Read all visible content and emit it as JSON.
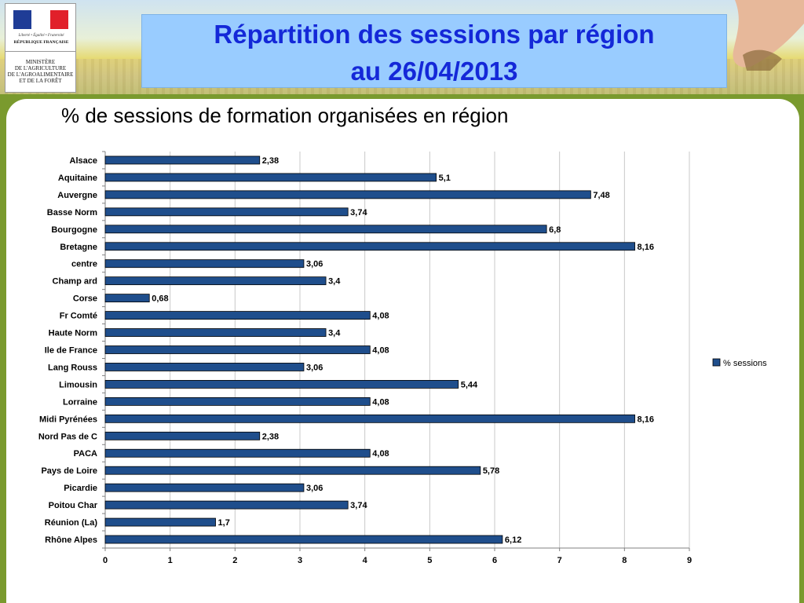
{
  "slide": {
    "title_line1": "Répartition des sessions par région",
    "title_line2": "au 26/04/2013",
    "subtitle": "% de sessions de formation organisées en région"
  },
  "logo": {
    "motto": "Liberté • Égalité • Fraternité",
    "republic": "RÉPUBLIQUE FRANÇAISE",
    "ministry": "MINISTÈRE\nDE L'AGRICULTURE\nDE L'AGROALIMENTAIRE\nET DE LA FORÊT"
  },
  "colors": {
    "bar": "#1f4e8c",
    "title_text": "#1428d8",
    "title_box": "#99ccff",
    "frame": "#7a9a2e"
  },
  "chart_data": {
    "type": "bar",
    "orientation": "horizontal",
    "categories": [
      "Alsace",
      "Aquitaine",
      "Auvergne",
      "Basse Norm",
      "Bourgogne",
      "Bretagne",
      "centre",
      "Champ ard",
      "Corse",
      "Fr Comté",
      "Haute Norm",
      "Ile de France",
      "Lang Rouss",
      "Limousin",
      "Lorraine",
      "Midi Pyrénées",
      "Nord Pas de C",
      "PACA",
      "Pays de Loire",
      "Picardie",
      "Poitou Char",
      "Réunion (La)",
      "Rhône Alpes"
    ],
    "series": [
      {
        "name": "% sessions",
        "values": [
          2.38,
          5.1,
          7.48,
          3.74,
          6.8,
          8.16,
          3.06,
          3.4,
          0.68,
          4.08,
          3.4,
          4.08,
          3.06,
          5.44,
          4.08,
          8.16,
          2.38,
          4.08,
          5.78,
          3.06,
          3.74,
          1.7,
          6.12
        ],
        "labels": [
          "2,38",
          "5,1",
          "7,48",
          "3,74",
          "6,8",
          "8,16",
          "3,06",
          "3,4",
          "0,68",
          "4,08",
          "3,4",
          "4,08",
          "3,06",
          "5,44",
          "4,08",
          "8,16",
          "2,38",
          "4,08",
          "5,78",
          "3,06",
          "3,74",
          "1,7",
          "6,12"
        ]
      }
    ],
    "xlim": [
      0,
      9
    ],
    "xticks": [
      0,
      1,
      2,
      3,
      4,
      5,
      6,
      7,
      8,
      9
    ],
    "grid": true,
    "legend": "right"
  }
}
